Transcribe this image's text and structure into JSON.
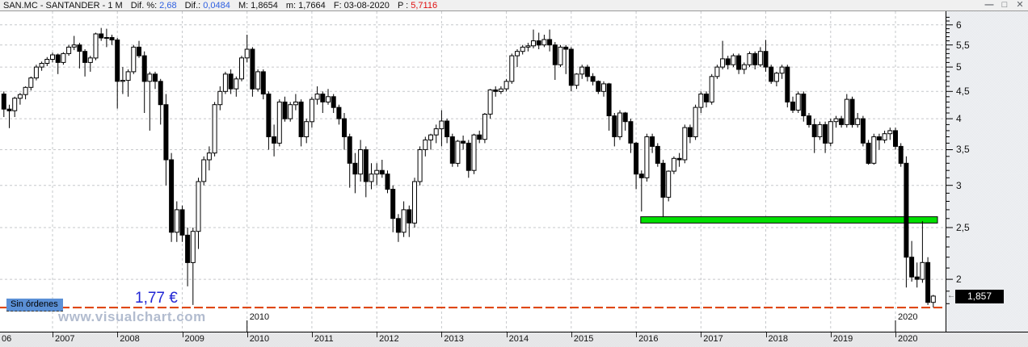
{
  "header": {
    "title": "SAN.MC - SANTANDER -  1 M",
    "fields": [
      {
        "label": "Dif. %:",
        "value": "2,68",
        "label_color": "c-black",
        "value_color": "c-blue"
      },
      {
        "label": "Dif.:",
        "value": "0,0484",
        "label_color": "c-black",
        "value_color": "c-blue"
      },
      {
        "label": "M:",
        "value": "1,8654",
        "label_color": "c-black",
        "value_color": "c-black"
      },
      {
        "label": "m:",
        "value": "1,7664",
        "label_color": "c-black",
        "value_color": "c-black"
      },
      {
        "label": "F:",
        "value": "03-08-2020",
        "label_color": "c-black",
        "value_color": "c-black"
      },
      {
        "label": "P :",
        "value": "5,7116",
        "label_color": "c-red",
        "value_color": "c-red"
      }
    ],
    "window_controls": {
      "minimize": "—",
      "maximize": "□",
      "close": "✕"
    }
  },
  "chart": {
    "no_orders_label": "Sin órdenes",
    "level_label": "1,77 €",
    "watermark": "www.visualchart.com",
    "last_price_label": "1,857",
    "tag_arrow": "←",
    "decade_labels": [
      {
        "text": "2010",
        "year": 2010
      },
      {
        "text": "2020",
        "year": 2020
      }
    ],
    "colors": {
      "bullish_fill": "#ffffff",
      "bearish_fill": "#000000",
      "candle_stroke": "#000000",
      "grid": "#c6c8cb",
      "support_green": "#00e000",
      "level_line_red": "#dd3c00",
      "label_bg_blue": "#5b90d6"
    }
  },
  "y_axis": {
    "labels": [
      {
        "text": "6",
        "value": 6
      },
      {
        "text": "5,5",
        "value": 5.5
      },
      {
        "text": "5",
        "value": 5
      },
      {
        "text": "4,5",
        "value": 4.5
      },
      {
        "text": "4",
        "value": 4
      },
      {
        "text": "3,5",
        "value": 3.5
      },
      {
        "text": "3",
        "value": 3
      },
      {
        "text": "2,5",
        "value": 2.5
      },
      {
        "text": "2",
        "value": 2
      }
    ]
  },
  "x_axis": {
    "years": [
      {
        "label": "06",
        "year": 2006
      },
      {
        "label": "2007",
        "year": 2007
      },
      {
        "label": "2008",
        "year": 2008
      },
      {
        "label": "2009",
        "year": 2009
      },
      {
        "label": "2010",
        "year": 2010
      },
      {
        "label": "2011",
        "year": 2011
      },
      {
        "label": "2012",
        "year": 2012
      },
      {
        "label": "2013",
        "year": 2013
      },
      {
        "label": "2014",
        "year": 2014
      },
      {
        "label": "2015",
        "year": 2015
      },
      {
        "label": "2016",
        "year": 2016
      },
      {
        "label": "2017",
        "year": 2017
      },
      {
        "label": "2018",
        "year": 2018
      },
      {
        "label": "2019",
        "year": 2019
      },
      {
        "label": "2020",
        "year": 2020
      }
    ]
  },
  "chart_data": {
    "type": "candlestick",
    "symbol": "SAN.MC",
    "name": "SANTANDER",
    "timeframe": "1M",
    "title": "SAN.MC - SANTANDER - 1 M",
    "y_scale": "log",
    "y_range": [
      1.7,
      6.3
    ],
    "grid": true,
    "gridline_prices": [
      2,
      2.5,
      3,
      3.5,
      4,
      4.5,
      5,
      5.5,
      6
    ],
    "support_zone": {
      "price_low": 2.55,
      "price_high": 2.62,
      "start_month": "2016-02",
      "extends_to_right_edge": true
    },
    "horizontal_level": {
      "price": 1.77,
      "label": "1,77 €"
    },
    "last_price": 1.857,
    "last_date": "03-08-2020",
    "candles": [
      [
        "2006-04",
        4.45,
        4.5,
        4.03,
        4.17
      ],
      [
        "2006-05",
        4.17,
        4.25,
        3.84,
        4.14
      ],
      [
        "2006-06",
        4.14,
        4.4,
        4.03,
        4.37
      ],
      [
        "2006-07",
        4.37,
        4.47,
        4.25,
        4.44
      ],
      [
        "2006-08",
        4.44,
        4.6,
        4.35,
        4.58
      ],
      [
        "2006-09",
        4.58,
        4.8,
        4.52,
        4.77
      ],
      [
        "2006-10",
        4.77,
        5.05,
        4.72,
        5.0
      ],
      [
        "2006-11",
        5.0,
        5.12,
        4.92,
        5.08
      ],
      [
        "2006-12",
        5.08,
        5.22,
        5.02,
        5.17
      ],
      [
        "2007-01",
        5.17,
        5.32,
        5.1,
        5.27
      ],
      [
        "2007-02",
        5.27,
        5.3,
        4.85,
        5.1
      ],
      [
        "2007-03",
        5.1,
        5.33,
        5.05,
        5.3
      ],
      [
        "2007-04",
        5.3,
        5.5,
        5.25,
        5.45
      ],
      [
        "2007-05",
        5.45,
        5.72,
        5.38,
        5.5
      ],
      [
        "2007-06",
        5.5,
        5.55,
        4.97,
        5.35
      ],
      [
        "2007-07",
        5.35,
        5.4,
        4.8,
        5.1
      ],
      [
        "2007-08",
        5.1,
        5.25,
        4.9,
        5.2
      ],
      [
        "2007-09",
        5.2,
        5.8,
        5.15,
        5.77
      ],
      [
        "2007-10",
        5.77,
        5.92,
        5.6,
        5.67
      ],
      [
        "2007-11",
        5.67,
        5.9,
        5.45,
        5.68
      ],
      [
        "2007-12",
        5.68,
        5.75,
        5.5,
        5.62
      ],
      [
        "2008-01",
        5.62,
        5.67,
        4.18,
        4.7
      ],
      [
        "2008-02",
        4.7,
        5.0,
        4.45,
        4.72
      ],
      [
        "2008-03",
        4.72,
        4.95,
        4.4,
        4.9
      ],
      [
        "2008-04",
        4.9,
        5.5,
        4.85,
        5.45
      ],
      [
        "2008-05",
        5.45,
        5.6,
        5.2,
        5.25
      ],
      [
        "2008-06",
        5.25,
        5.35,
        4.1,
        4.7
      ],
      [
        "2008-07",
        4.7,
        4.9,
        3.8,
        4.85
      ],
      [
        "2008-08",
        4.85,
        4.9,
        4.55,
        4.7
      ],
      [
        "2008-09",
        4.7,
        4.75,
        3.9,
        4.25
      ],
      [
        "2008-10",
        4.25,
        4.45,
        3.0,
        3.35
      ],
      [
        "2008-11",
        3.35,
        3.45,
        2.35,
        2.45
      ],
      [
        "2008-12",
        2.45,
        2.8,
        2.35,
        2.7
      ],
      [
        "2009-01",
        2.7,
        2.75,
        2.35,
        2.42
      ],
      [
        "2009-02",
        2.42,
        2.5,
        1.94,
        2.15
      ],
      [
        "2009-03",
        2.15,
        2.5,
        1.79,
        2.46
      ],
      [
        "2009-04",
        2.46,
        3.1,
        2.28,
        3.05
      ],
      [
        "2009-05",
        3.05,
        3.4,
        3.0,
        3.35
      ],
      [
        "2009-06",
        3.35,
        3.55,
        3.2,
        3.45
      ],
      [
        "2009-07",
        3.45,
        4.3,
        3.4,
        4.25
      ],
      [
        "2009-08",
        4.25,
        4.6,
        4.15,
        4.5
      ],
      [
        "2009-09",
        4.5,
        4.9,
        4.45,
        4.85
      ],
      [
        "2009-10",
        4.85,
        4.95,
        4.45,
        4.55
      ],
      [
        "2009-11",
        4.55,
        4.8,
        4.4,
        4.75
      ],
      [
        "2009-12",
        4.75,
        5.25,
        4.7,
        5.2
      ],
      [
        "2010-01",
        5.2,
        5.75,
        5.1,
        5.4
      ],
      [
        "2010-02",
        5.4,
        5.45,
        4.4,
        4.55
      ],
      [
        "2010-03",
        4.55,
        4.95,
        4.5,
        4.9
      ],
      [
        "2010-04",
        4.9,
        4.95,
        4.35,
        4.45
      ],
      [
        "2010-05",
        4.45,
        4.5,
        3.5,
        3.7
      ],
      [
        "2010-06",
        3.7,
        3.9,
        3.4,
        3.6
      ],
      [
        "2010-07",
        3.6,
        4.35,
        3.55,
        4.3
      ],
      [
        "2010-08",
        4.3,
        4.4,
        3.95,
        4.0
      ],
      [
        "2010-09",
        4.0,
        4.3,
        3.95,
        4.25
      ],
      [
        "2010-10",
        4.25,
        4.45,
        4.15,
        4.3
      ],
      [
        "2010-11",
        4.3,
        4.35,
        3.55,
        3.7
      ],
      [
        "2010-12",
        3.7,
        4.0,
        3.6,
        3.95
      ],
      [
        "2011-01",
        3.95,
        4.4,
        3.85,
        4.35
      ],
      [
        "2011-02",
        4.35,
        4.6,
        4.25,
        4.45
      ],
      [
        "2011-03",
        4.45,
        4.5,
        4.1,
        4.3
      ],
      [
        "2011-04",
        4.3,
        4.55,
        4.25,
        4.4
      ],
      [
        "2011-05",
        4.4,
        4.45,
        4.1,
        4.2
      ],
      [
        "2011-06",
        4.2,
        4.25,
        3.9,
        4.0
      ],
      [
        "2011-07",
        4.0,
        4.1,
        3.5,
        3.7
      ],
      [
        "2011-08",
        3.7,
        3.75,
        2.97,
        3.3
      ],
      [
        "2011-09",
        3.3,
        3.45,
        2.9,
        3.15
      ],
      [
        "2011-10",
        3.15,
        3.65,
        3.05,
        3.5
      ],
      [
        "2011-11",
        3.5,
        3.55,
        2.85,
        3.05
      ],
      [
        "2011-12",
        3.05,
        3.3,
        2.95,
        3.15
      ],
      [
        "2012-01",
        3.15,
        3.3,
        3.0,
        3.2
      ],
      [
        "2012-02",
        3.2,
        3.35,
        3.1,
        3.15
      ],
      [
        "2012-03",
        3.15,
        3.2,
        2.9,
        2.95
      ],
      [
        "2012-04",
        2.95,
        3.0,
        2.45,
        2.6
      ],
      [
        "2012-05",
        2.6,
        2.65,
        2.35,
        2.45
      ],
      [
        "2012-06",
        2.45,
        2.8,
        2.4,
        2.7
      ],
      [
        "2012-07",
        2.7,
        2.75,
        2.4,
        2.55
      ],
      [
        "2012-08",
        2.55,
        3.1,
        2.5,
        3.05
      ],
      [
        "2012-09",
        3.05,
        3.55,
        3.0,
        3.5
      ],
      [
        "2012-10",
        3.5,
        3.7,
        3.4,
        3.65
      ],
      [
        "2012-11",
        3.65,
        3.75,
        3.5,
        3.73
      ],
      [
        "2012-12",
        3.73,
        3.9,
        3.6,
        3.83
      ],
      [
        "2013-01",
        3.83,
        4.15,
        3.55,
        3.96
      ],
      [
        "2013-02",
        3.96,
        4.0,
        3.6,
        3.7
      ],
      [
        "2013-03",
        3.7,
        3.75,
        3.25,
        3.3
      ],
      [
        "2013-04",
        3.3,
        3.65,
        3.25,
        3.63
      ],
      [
        "2013-05",
        3.63,
        3.72,
        3.5,
        3.6
      ],
      [
        "2013-06",
        3.6,
        3.65,
        3.1,
        3.2
      ],
      [
        "2013-07",
        3.2,
        3.75,
        3.15,
        3.73
      ],
      [
        "2013-08",
        3.73,
        3.8,
        3.6,
        3.66
      ],
      [
        "2013-09",
        3.66,
        4.1,
        3.6,
        4.08
      ],
      [
        "2013-10",
        4.08,
        4.55,
        4.0,
        4.53
      ],
      [
        "2013-11",
        4.53,
        4.6,
        4.4,
        4.5
      ],
      [
        "2013-12",
        4.5,
        4.6,
        4.45,
        4.55
      ],
      [
        "2014-01",
        4.55,
        4.75,
        4.5,
        4.7
      ],
      [
        "2014-02",
        4.7,
        5.3,
        4.65,
        5.25
      ],
      [
        "2014-03",
        5.25,
        5.4,
        5.0,
        5.35
      ],
      [
        "2014-04",
        5.35,
        5.5,
        5.28,
        5.45
      ],
      [
        "2014-05",
        5.45,
        5.55,
        5.35,
        5.48
      ],
      [
        "2014-06",
        5.48,
        5.88,
        5.42,
        5.6
      ],
      [
        "2014-07",
        5.6,
        5.8,
        5.4,
        5.5
      ],
      [
        "2014-08",
        5.5,
        5.75,
        5.45,
        5.63
      ],
      [
        "2014-09",
        5.63,
        5.88,
        5.35,
        5.5
      ],
      [
        "2014-10",
        5.5,
        5.57,
        4.73,
        5.05
      ],
      [
        "2014-11",
        5.05,
        5.5,
        5.0,
        5.45
      ],
      [
        "2014-12",
        5.45,
        5.5,
        4.85,
        5.4
      ],
      [
        "2015-01",
        5.4,
        5.45,
        4.5,
        4.62
      ],
      [
        "2015-02",
        4.62,
        4.87,
        4.55,
        4.85
      ],
      [
        "2015-03",
        4.85,
        5.05,
        4.75,
        5.0
      ],
      [
        "2015-04",
        5.0,
        5.05,
        4.7,
        4.8
      ],
      [
        "2015-05",
        4.8,
        4.87,
        4.62,
        4.7
      ],
      [
        "2015-06",
        4.7,
        4.72,
        4.45,
        4.5
      ],
      [
        "2015-07",
        4.5,
        4.7,
        4.4,
        4.65
      ],
      [
        "2015-08",
        4.65,
        4.67,
        3.8,
        4.05
      ],
      [
        "2015-09",
        4.05,
        4.1,
        3.55,
        3.7
      ],
      [
        "2015-10",
        3.7,
        4.15,
        3.65,
        4.1
      ],
      [
        "2015-11",
        4.1,
        4.12,
        3.8,
        3.95
      ],
      [
        "2015-12",
        3.95,
        4.0,
        3.45,
        3.6
      ],
      [
        "2016-01",
        3.6,
        3.62,
        2.95,
        3.15
      ],
      [
        "2016-02",
        3.15,
        3.2,
        2.68,
        3.1
      ],
      [
        "2016-03",
        3.1,
        3.75,
        3.05,
        3.7
      ],
      [
        "2016-04",
        3.7,
        3.75,
        3.45,
        3.55
      ],
      [
        "2016-05",
        3.55,
        3.6,
        3.25,
        3.3
      ],
      [
        "2016-06",
        3.3,
        3.35,
        2.62,
        2.85
      ],
      [
        "2016-07",
        2.85,
        3.2,
        2.8,
        3.19
      ],
      [
        "2016-08",
        3.19,
        3.4,
        3.15,
        3.37
      ],
      [
        "2016-09",
        3.37,
        3.45,
        3.25,
        3.35
      ],
      [
        "2016-10",
        3.35,
        3.9,
        3.3,
        3.85
      ],
      [
        "2016-11",
        3.85,
        3.9,
        3.6,
        3.7
      ],
      [
        "2016-12",
        3.7,
        4.25,
        3.65,
        4.2
      ],
      [
        "2017-01",
        4.2,
        4.5,
        4.1,
        4.45
      ],
      [
        "2017-02",
        4.45,
        4.5,
        4.2,
        4.3
      ],
      [
        "2017-03",
        4.3,
        4.85,
        4.25,
        4.8
      ],
      [
        "2017-04",
        4.8,
        5.05,
        4.75,
        5.0
      ],
      [
        "2017-05",
        5.0,
        5.6,
        4.95,
        5.18
      ],
      [
        "2017-06",
        5.18,
        5.25,
        4.95,
        5.05
      ],
      [
        "2017-07",
        5.05,
        5.3,
        5.0,
        5.25
      ],
      [
        "2017-08",
        5.25,
        5.3,
        4.85,
        4.95
      ],
      [
        "2017-09",
        4.95,
        5.1,
        4.85,
        5.05
      ],
      [
        "2017-10",
        5.05,
        5.35,
        5.0,
        5.3
      ],
      [
        "2017-11",
        5.3,
        5.35,
        4.95,
        5.05
      ],
      [
        "2017-12",
        5.05,
        5.45,
        5.0,
        5.35
      ],
      [
        "2018-01",
        5.35,
        5.62,
        4.9,
        5.0
      ],
      [
        "2018-02",
        5.0,
        5.05,
        4.65,
        4.7
      ],
      [
        "2018-03",
        4.7,
        4.9,
        4.6,
        4.87
      ],
      [
        "2018-04",
        4.87,
        5.05,
        4.75,
        5.0
      ],
      [
        "2018-05",
        5.0,
        5.05,
        4.2,
        4.3
      ],
      [
        "2018-06",
        4.3,
        4.4,
        4.1,
        4.15
      ],
      [
        "2018-07",
        4.15,
        4.5,
        4.1,
        4.45
      ],
      [
        "2018-08",
        4.45,
        4.5,
        3.95,
        4.05
      ],
      [
        "2018-09",
        4.05,
        4.1,
        3.85,
        3.9
      ],
      [
        "2018-10",
        3.9,
        4.0,
        3.45,
        3.7
      ],
      [
        "2018-11",
        3.7,
        3.95,
        3.65,
        3.9
      ],
      [
        "2018-12",
        3.9,
        3.95,
        3.45,
        3.6
      ],
      [
        "2019-01",
        3.6,
        4.0,
        3.55,
        3.95
      ],
      [
        "2019-02",
        3.95,
        4.05,
        3.85,
        4.0
      ],
      [
        "2019-03",
        4.0,
        4.05,
        3.85,
        3.9
      ],
      [
        "2019-04",
        3.9,
        4.45,
        3.85,
        4.35
      ],
      [
        "2019-05",
        4.35,
        4.4,
        3.85,
        3.9
      ],
      [
        "2019-06",
        3.9,
        4.1,
        3.85,
        4.0
      ],
      [
        "2019-07",
        4.0,
        4.05,
        3.55,
        3.6
      ],
      [
        "2019-08",
        3.6,
        3.65,
        3.28,
        3.3
      ],
      [
        "2019-09",
        3.3,
        3.75,
        3.28,
        3.7
      ],
      [
        "2019-10",
        3.7,
        3.75,
        3.5,
        3.65
      ],
      [
        "2019-11",
        3.65,
        3.8,
        3.6,
        3.75
      ],
      [
        "2019-12",
        3.75,
        3.85,
        3.65,
        3.8
      ],
      [
        "2020-01",
        3.8,
        3.85,
        3.5,
        3.55
      ],
      [
        "2020-02",
        3.55,
        3.6,
        3.25,
        3.3
      ],
      [
        "2020-03",
        3.3,
        3.4,
        1.93,
        2.2
      ],
      [
        "2020-04",
        2.2,
        2.36,
        1.98,
        2.02
      ],
      [
        "2020-05",
        2.02,
        2.15,
        1.93,
        2.0
      ],
      [
        "2020-06",
        2.0,
        2.57,
        1.97,
        2.15
      ],
      [
        "2020-07",
        2.15,
        2.2,
        1.79,
        1.81
      ],
      [
        "2020-08",
        1.81,
        1.87,
        1.77,
        1.86
      ]
    ]
  }
}
